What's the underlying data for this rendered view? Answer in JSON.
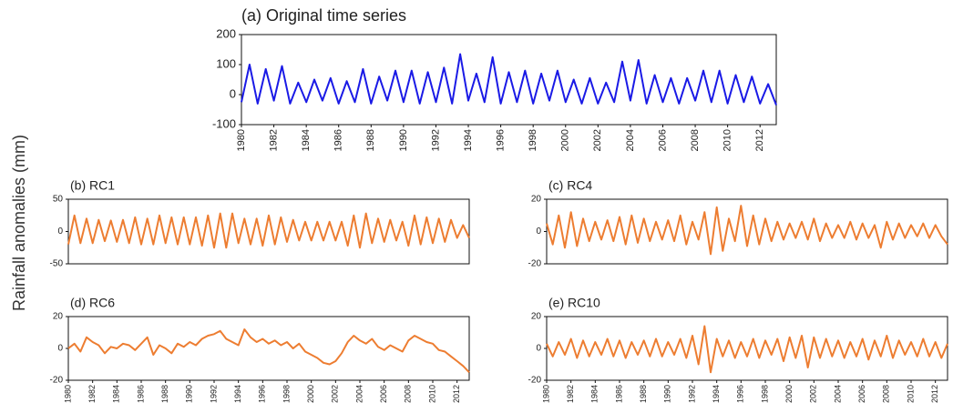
{
  "ylabel": "Rainfall anomalies (mm)",
  "chart_data": [
    {
      "type": "line",
      "title": "(a) Original time series",
      "color": "#1a1ae6",
      "x": [
        1980,
        1980.5,
        1981,
        1981.5,
        1982,
        1982.5,
        1983,
        1983.5,
        1984,
        1984.5,
        1985,
        1985.5,
        1986,
        1986.5,
        1987,
        1987.5,
        1988,
        1988.5,
        1989,
        1989.5,
        1990,
        1990.5,
        1991,
        1991.5,
        1992,
        1992.5,
        1993,
        1993.5,
        1994,
        1994.5,
        1995,
        1995.5,
        1996,
        1996.5,
        1997,
        1997.5,
        1998,
        1998.5,
        1999,
        1999.5,
        2000,
        2000.5,
        2001,
        2001.5,
        2002,
        2002.5,
        2003,
        2003.5,
        2004,
        2004.5,
        2005,
        2005.5,
        2006,
        2006.5,
        2007,
        2007.5,
        2008,
        2008.5,
        2009,
        2009.5,
        2010,
        2010.5,
        2011,
        2011.5,
        2012,
        2012.5,
        2013
      ],
      "values": [
        -25,
        100,
        -30,
        85,
        -20,
        95,
        -30,
        40,
        -25,
        50,
        -20,
        55,
        -30,
        45,
        -25,
        85,
        -30,
        60,
        -20,
        80,
        -25,
        80,
        -30,
        75,
        -25,
        90,
        -30,
        135,
        -20,
        70,
        -25,
        125,
        -30,
        75,
        -25,
        80,
        -30,
        70,
        -20,
        80,
        -25,
        50,
        -30,
        55,
        -30,
        40,
        -25,
        110,
        -20,
        115,
        -30,
        65,
        -25,
        55,
        -30,
        55,
        -20,
        80,
        -25,
        80,
        -30,
        65,
        -25,
        60,
        -30,
        35,
        -35
      ],
      "xlim": [
        1980,
        2013
      ],
      "xticks": [
        1980,
        1982,
        1984,
        1986,
        1988,
        1990,
        1992,
        1994,
        1996,
        1998,
        2000,
        2002,
        2004,
        2006,
        2008,
        2010,
        2012
      ],
      "ylim": [
        -100,
        200
      ],
      "yticks": [
        -100,
        0,
        100,
        200
      ]
    },
    {
      "type": "line",
      "title": "(b) RC1",
      "color": "#ed7d31",
      "x": [
        1980,
        1980.5,
        1981,
        1981.5,
        1982,
        1982.5,
        1983,
        1983.5,
        1984,
        1984.5,
        1985,
        1985.5,
        1986,
        1986.5,
        1987,
        1987.5,
        1988,
        1988.5,
        1989,
        1989.5,
        1990,
        1990.5,
        1991,
        1991.5,
        1992,
        1992.5,
        1993,
        1993.5,
        1994,
        1994.5,
        1995,
        1995.5,
        1996,
        1996.5,
        1997,
        1997.5,
        1998,
        1998.5,
        1999,
        1999.5,
        2000,
        2000.5,
        2001,
        2001.5,
        2002,
        2002.5,
        2003,
        2003.5,
        2004,
        2004.5,
        2005,
        2005.5,
        2006,
        2006.5,
        2007,
        2007.5,
        2008,
        2008.5,
        2009,
        2009.5,
        2010,
        2010.5,
        2011,
        2011.5,
        2012,
        2012.5,
        2013
      ],
      "values": [
        -20,
        25,
        -18,
        20,
        -18,
        18,
        -15,
        17,
        -16,
        18,
        -18,
        22,
        -20,
        20,
        -20,
        25,
        -18,
        22,
        -20,
        22,
        -20,
        22,
        -22,
        25,
        -25,
        28,
        -25,
        28,
        -18,
        20,
        -20,
        20,
        -22,
        25,
        -20,
        22,
        -16,
        18,
        -14,
        15,
        -14,
        15,
        -14,
        15,
        -14,
        15,
        -22,
        25,
        -25,
        28,
        -18,
        20,
        -16,
        18,
        -14,
        15,
        -22,
        25,
        -20,
        22,
        -18,
        20,
        -16,
        18,
        -10,
        10,
        -10
      ],
      "xlim": [
        1980,
        2013
      ],
      "ylim": [
        -50,
        50
      ],
      "yticks": [
        -50,
        0,
        50
      ]
    },
    {
      "type": "line",
      "title": "(c) RC4",
      "color": "#ed7d31",
      "x": [
        1980,
        1980.5,
        1981,
        1981.5,
        1982,
        1982.5,
        1983,
        1983.5,
        1984,
        1984.5,
        1985,
        1985.5,
        1986,
        1986.5,
        1987,
        1987.5,
        1988,
        1988.5,
        1989,
        1989.5,
        1990,
        1990.5,
        1991,
        1991.5,
        1992,
        1992.5,
        1993,
        1993.5,
        1994,
        1994.5,
        1995,
        1995.5,
        1996,
        1996.5,
        1997,
        1997.5,
        1998,
        1998.5,
        1999,
        1999.5,
        2000,
        2000.5,
        2001,
        2001.5,
        2002,
        2002.5,
        2003,
        2003.5,
        2004,
        2004.5,
        2005,
        2005.5,
        2006,
        2006.5,
        2007,
        2007.5,
        2008,
        2008.5,
        2009,
        2009.5,
        2010,
        2010.5,
        2011,
        2011.5,
        2012,
        2012.5,
        2013
      ],
      "values": [
        5,
        -8,
        10,
        -10,
        12,
        -9,
        8,
        -6,
        6,
        -5,
        7,
        -6,
        9,
        -8,
        10,
        -7,
        8,
        -6,
        6,
        -5,
        7,
        -6,
        10,
        -8,
        6,
        -5,
        12,
        -14,
        15,
        -12,
        8,
        -6,
        16,
        -9,
        10,
        -8,
        8,
        -6,
        6,
        -5,
        5,
        -4,
        6,
        -5,
        8,
        -6,
        5,
        -4,
        4,
        -4,
        6,
        -5,
        5,
        -4,
        4,
        -10,
        6,
        -5,
        5,
        -4,
        4,
        -3,
        5,
        -4,
        4,
        -3,
        -8
      ],
      "xlim": [
        1980,
        2013
      ],
      "ylim": [
        -20,
        20
      ],
      "yticks": [
        -20,
        0,
        20
      ]
    },
    {
      "type": "line",
      "title": "(d) RC6",
      "color": "#ed7d31",
      "x": [
        1980,
        1980.5,
        1981,
        1981.5,
        1982,
        1982.5,
        1983,
        1983.5,
        1984,
        1984.5,
        1985,
        1985.5,
        1986,
        1986.5,
        1987,
        1987.5,
        1988,
        1988.5,
        1989,
        1989.5,
        1990,
        1990.5,
        1991,
        1991.5,
        1992,
        1992.5,
        1993,
        1993.5,
        1994,
        1994.5,
        1995,
        1995.5,
        1996,
        1996.5,
        1997,
        1997.5,
        1998,
        1998.5,
        1999,
        1999.5,
        2000,
        2000.5,
        2001,
        2001.5,
        2002,
        2002.5,
        2003,
        2003.5,
        2004,
        2004.5,
        2005,
        2005.5,
        2006,
        2006.5,
        2007,
        2007.5,
        2008,
        2008.5,
        2009,
        2009.5,
        2010,
        2010.5,
        2011,
        2011.5,
        2012,
        2012.5,
        2013
      ],
      "values": [
        0,
        3,
        -2,
        7,
        4,
        2,
        -3,
        1,
        0,
        3,
        2,
        -1,
        3,
        7,
        -4,
        2,
        0,
        -3,
        3,
        1,
        4,
        2,
        6,
        8,
        9,
        11,
        6,
        4,
        2,
        12,
        7,
        4,
        6,
        3,
        5,
        2,
        4,
        0,
        3,
        -2,
        -4,
        -6,
        -9,
        -10,
        -8,
        -3,
        4,
        8,
        5,
        3,
        6,
        1,
        -1,
        2,
        0,
        -2,
        5,
        8,
        6,
        4,
        3,
        -1,
        -2,
        -5,
        -8,
        -11,
        -15
      ],
      "xlim": [
        1980,
        2013
      ],
      "xticks": [
        1980,
        1982,
        1984,
        1986,
        1988,
        1990,
        1992,
        1994,
        1996,
        1998,
        2000,
        2002,
        2004,
        2006,
        2008,
        2010,
        2012
      ],
      "ylim": [
        -20,
        20
      ],
      "yticks": [
        -20,
        0,
        20
      ]
    },
    {
      "type": "line",
      "title": "(e) RC10",
      "color": "#ed7d31",
      "x": [
        1980,
        1980.5,
        1981,
        1981.5,
        1982,
        1982.5,
        1983,
        1983.5,
        1984,
        1984.5,
        1985,
        1985.5,
        1986,
        1986.5,
        1987,
        1987.5,
        1988,
        1988.5,
        1989,
        1989.5,
        1990,
        1990.5,
        1991,
        1991.5,
        1992,
        1992.5,
        1993,
        1993.5,
        1994,
        1994.5,
        1995,
        1995.5,
        1996,
        1996.5,
        1997,
        1997.5,
        1998,
        1998.5,
        1999,
        1999.5,
        2000,
        2000.5,
        2001,
        2001.5,
        2002,
        2002.5,
        2003,
        2003.5,
        2004,
        2004.5,
        2005,
        2005.5,
        2006,
        2006.5,
        2007,
        2007.5,
        2008,
        2008.5,
        2009,
        2009.5,
        2010,
        2010.5,
        2011,
        2011.5,
        2012,
        2012.5,
        2013
      ],
      "values": [
        3,
        -5,
        4,
        -4,
        6,
        -6,
        5,
        -5,
        4,
        -4,
        6,
        -5,
        5,
        -6,
        4,
        -4,
        5,
        -5,
        6,
        -5,
        4,
        -4,
        6,
        -6,
        8,
        -10,
        14,
        -15,
        6,
        -5,
        5,
        -6,
        4,
        -5,
        6,
        -6,
        5,
        -4,
        6,
        -8,
        7,
        -6,
        8,
        -12,
        7,
        -6,
        6,
        -5,
        5,
        -6,
        4,
        -5,
        6,
        -7,
        5,
        -5,
        8,
        -6,
        5,
        -4,
        4,
        -5,
        6,
        -5,
        4,
        -6,
        3
      ],
      "xlim": [
        1980,
        2013
      ],
      "xticks": [
        1980,
        1982,
        1984,
        1986,
        1988,
        1990,
        1992,
        1994,
        1996,
        1998,
        2000,
        2002,
        2004,
        2006,
        2008,
        2010,
        2012
      ],
      "ylim": [
        -20,
        20
      ],
      "yticks": [
        -20,
        0,
        20
      ]
    }
  ]
}
